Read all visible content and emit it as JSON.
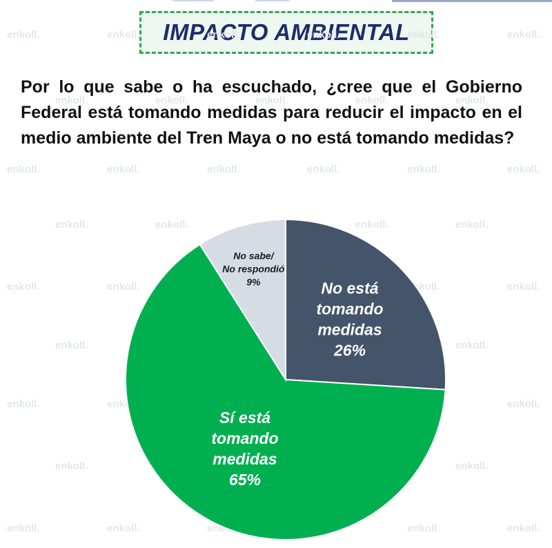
{
  "header": {
    "title": "IMPACTO AMBIENTAL",
    "question": "Por lo que sabe o ha escuchado, ¿cree que el Gobierno Federal está tomando medidas para reducir el impacto en el medio ambiente del Tren Maya o no está tomando medidas?"
  },
  "watermark": {
    "text": "enkoll."
  },
  "colors": {
    "title_text": "#1f2b6b",
    "title_border": "#2ea84f",
    "no_esta": "#44546a",
    "si_esta": "#00b050",
    "no_sabe": "#d6dce4"
  },
  "chart_data": {
    "type": "pie",
    "title": "",
    "slices": [
      {
        "label_lines": [
          "No está",
          "tomando",
          "medidas"
        ],
        "value": 26,
        "value_label": "26%",
        "color": "#44546a"
      },
      {
        "label_lines": [
          "Sí está",
          "tomando",
          "medidas"
        ],
        "value": 65,
        "value_label": "65%",
        "color": "#00b050"
      },
      {
        "label_lines": [
          "No sabe/",
          "No respondió"
        ],
        "value": 9,
        "value_label": "9%",
        "color": "#d6dce4"
      }
    ]
  }
}
